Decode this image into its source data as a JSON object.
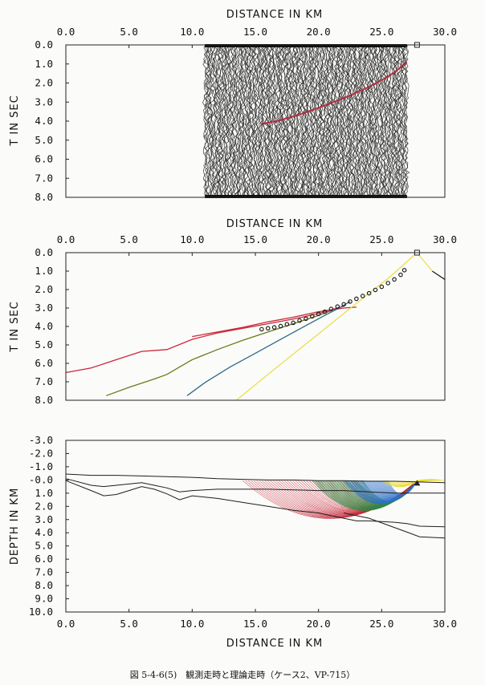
{
  "caption": "図 5-4-6(5)　観測走時と理論走時（ケース2、VP-715）",
  "chart_data": [
    {
      "type": "seismic-section",
      "xlabel": "DISTANCE IN KM",
      "ylabel": "T IN SEC",
      "xlim": [
        0,
        30
      ],
      "ylim": [
        0,
        8
      ],
      "y_inverted": true,
      "x_axis_position": "top",
      "x_ticks": [
        "0.0",
        "5.0",
        "10.0",
        "15.0",
        "20.0",
        "25.0",
        "30.0"
      ],
      "y_ticks": [
        "0.0",
        "1.0",
        "2.0",
        "3.0",
        "4.0",
        "5.0",
        "6.0",
        "7.0",
        "8.0"
      ],
      "record_x_range": [
        11.0,
        27.0
      ],
      "source_x": 27.8,
      "picked_first_arrival": {
        "x": [
          15.5,
          17,
          18.5,
          20,
          21,
          22,
          23,
          24,
          25,
          26,
          27
        ],
        "t": [
          4.15,
          3.95,
          3.65,
          3.3,
          3.05,
          2.8,
          2.5,
          2.2,
          1.85,
          1.45,
          0.9
        ]
      },
      "colors": {
        "trace": "#1e1e1e",
        "pick": "#b02838"
      }
    },
    {
      "type": "line",
      "xlabel": "DISTANCE IN KM",
      "ylabel": "T IN SEC",
      "xlim": [
        0,
        30
      ],
      "ylim": [
        0,
        8
      ],
      "y_inverted": true,
      "x_axis_position": "top",
      "x_ticks": [
        "0.0",
        "5.0",
        "10.0",
        "15.0",
        "20.0",
        "25.0",
        "30.0"
      ],
      "y_ticks": [
        "0.0",
        "1.0",
        "2.0",
        "3.0",
        "4.0",
        "5.0",
        "6.0",
        "7.0",
        "8.0"
      ],
      "source_x": 27.8,
      "series": [
        {
          "color": "#c8283a",
          "x": [
            0,
            2,
            4,
            6,
            8,
            10,
            12,
            14,
            16,
            18,
            20,
            21,
            22
          ],
          "t": [
            6.5,
            6.25,
            5.8,
            5.35,
            5.25,
            4.7,
            4.35,
            4.1,
            3.85,
            3.6,
            3.3,
            3.1,
            2.9
          ]
        },
        {
          "color": "#c8283a",
          "x": [
            10,
            12,
            14,
            16,
            18,
            20,
            22,
            23
          ],
          "t": [
            4.55,
            4.3,
            4.05,
            3.75,
            3.5,
            3.2,
            3.0,
            2.95
          ]
        },
        {
          "color": "#6a7a1c",
          "x": [
            3.2,
            5,
            7,
            8,
            9,
            10,
            12,
            14,
            16,
            18,
            20,
            21
          ],
          "t": [
            7.75,
            7.3,
            6.85,
            6.6,
            6.2,
            5.8,
            5.25,
            4.75,
            4.3,
            3.85,
            3.4,
            3.15
          ]
        },
        {
          "color": "#2e6a8a",
          "x": [
            9.6,
            11,
            13,
            15,
            17,
            19,
            20.5,
            21.5,
            22.5
          ],
          "t": [
            7.75,
            7.05,
            6.2,
            5.45,
            4.7,
            3.95,
            3.4,
            3.05,
            2.65
          ]
        },
        {
          "color": "#e8e050",
          "x": [
            13.5,
            16,
            18,
            20,
            22,
            24,
            25.5,
            27.8
          ],
          "t": [
            8.0,
            6.6,
            5.5,
            4.4,
            3.3,
            2.2,
            1.4,
            0.0
          ]
        },
        {
          "color": "#e8e050",
          "x": [
            27.8,
            29
          ],
          "t": [
            0.0,
            1.0
          ]
        },
        {
          "color": "#1e1e1e",
          "x": [
            29,
            30
          ],
          "t": [
            1.0,
            1.45
          ]
        }
      ],
      "observed": {
        "x": [
          15.5,
          16,
          16.5,
          17,
          17.5,
          18,
          18.5,
          19,
          19.5,
          20,
          20.5,
          21,
          21.5,
          22,
          22.5,
          23,
          23.5,
          24,
          24.5,
          25,
          25.5,
          26,
          26.5,
          26.8
        ],
        "t": [
          4.15,
          4.1,
          4.05,
          3.98,
          3.88,
          3.8,
          3.68,
          3.58,
          3.45,
          3.32,
          3.2,
          3.05,
          2.92,
          2.8,
          2.65,
          2.5,
          2.35,
          2.2,
          2.02,
          1.85,
          1.65,
          1.45,
          1.2,
          0.95
        ]
      }
    },
    {
      "type": "ray-diagram",
      "xlabel": "DISTANCE IN KM",
      "ylabel": "DEPTH IN KM",
      "xlim": [
        0,
        30
      ],
      "ylim": [
        -3,
        10
      ],
      "y_inverted": true,
      "x_axis_position": "bottom",
      "x_ticks": [
        "0.0",
        "5.0",
        "10.0",
        "15.0",
        "20.0",
        "25.0",
        "30.0"
      ],
      "y_ticks": [
        "-3.0",
        "-2.0",
        "-1.0",
        "-0.0",
        "1.0",
        "2.0",
        "3.0",
        "4.0",
        "5.0",
        "6.0",
        "7.0",
        "8.0",
        "9.0",
        "10.0"
      ],
      "source_x": 27.8,
      "layer_boundaries": [
        {
          "x": [
            0,
            2,
            4,
            6,
            8,
            10,
            12,
            14,
            16,
            18,
            20,
            22,
            24,
            26,
            28,
            30
          ],
          "depth": [
            -0.45,
            -0.35,
            -0.35,
            -0.3,
            -0.25,
            -0.2,
            -0.1,
            -0.05,
            0.0,
            0.0,
            0.05,
            0.05,
            0.1,
            0.1,
            0.15,
            0.2
          ]
        },
        {
          "x": [
            0,
            2,
            3,
            4,
            6,
            7,
            8,
            9,
            10,
            12,
            14,
            16,
            18,
            20,
            22,
            24,
            26,
            28,
            30
          ],
          "depth": [
            -0.1,
            0.4,
            0.5,
            0.4,
            0.2,
            0.4,
            0.6,
            0.9,
            0.8,
            0.7,
            0.7,
            0.7,
            0.75,
            0.8,
            0.8,
            0.9,
            1.0,
            1.0,
            1.0
          ]
        },
        {
          "x": [
            0,
            2,
            3,
            4,
            5,
            6,
            7,
            8,
            9,
            10,
            12,
            14,
            16,
            18,
            20,
            22,
            23,
            24,
            25,
            26,
            27,
            28,
            30
          ],
          "depth": [
            0.05,
            0.8,
            1.2,
            1.1,
            0.8,
            0.5,
            0.7,
            1.05,
            1.5,
            1.2,
            1.4,
            1.7,
            2.0,
            2.3,
            2.5,
            2.9,
            3.1,
            3.1,
            3.15,
            3.2,
            3.3,
            3.5,
            3.55
          ]
        },
        {
          "x": [
            22,
            24,
            26,
            28,
            30
          ],
          "depth": [
            2.5,
            2.9,
            3.6,
            4.3,
            4.4
          ]
        }
      ],
      "ray_fans": [
        {
          "color": "#c8283a",
          "x_start": 14.0,
          "x_end": 23.0,
          "apex_depth": 2.9
        },
        {
          "color": "#2e8a40",
          "x_start": 19.5,
          "x_end": 23.5,
          "apex_depth": 2.3
        },
        {
          "color": "#2e70c8",
          "x_start": 22.0,
          "x_end": 25.5,
          "apex_depth": 1.8
        },
        {
          "color": "#e8dc28",
          "x_start": 25.0,
          "x_end": 30.0,
          "apex_depth": 0.5
        }
      ],
      "colors": {
        "boundary": "#1e1e1e"
      }
    }
  ]
}
